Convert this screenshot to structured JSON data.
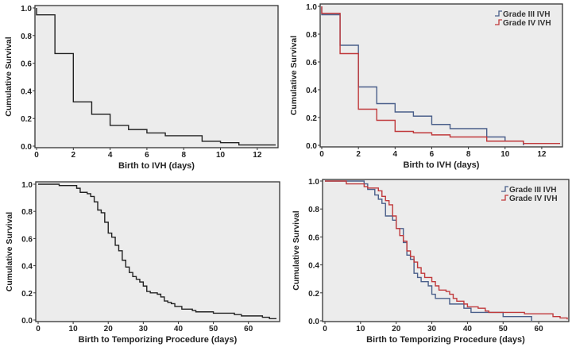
{
  "colors": {
    "background": "#ececec",
    "single": "#222222",
    "grade3": "#4a5f8a",
    "grade4": "#c0393b"
  },
  "chart_data": [
    {
      "type": "line",
      "step": true,
      "xlabel": "Birth to IVH (days)",
      "ylabel": "Cumulative Survival",
      "xlim": [
        0,
        13
      ],
      "ylim": [
        0,
        1
      ],
      "xticks": [
        0,
        2,
        4,
        6,
        8,
        10,
        12
      ],
      "yticks": [
        "0.0",
        "0.2",
        "0.4",
        "0.6",
        "0.8",
        "1.0"
      ],
      "series": [
        {
          "color": "#222222",
          "points": [
            [
              0,
              1
            ],
            [
              0,
              0.95
            ],
            [
              1,
              0.67
            ],
            [
              2,
              0.32
            ],
            [
              3,
              0.23
            ],
            [
              4,
              0.15
            ],
            [
              5,
              0.12
            ],
            [
              6,
              0.095
            ],
            [
              7,
              0.075
            ],
            [
              9,
              0.035
            ],
            [
              10,
              0.025
            ],
            [
              11,
              0.008
            ],
            [
              13,
              0.008
            ]
          ]
        }
      ]
    },
    {
      "type": "line",
      "step": true,
      "xlabel": "Birth to IVH (days)",
      "ylabel": "Cumulative Survival",
      "xlim": [
        0,
        13
      ],
      "ylim": [
        0,
        1
      ],
      "xticks": [
        0,
        2,
        4,
        6,
        8,
        10,
        12
      ],
      "yticks": [
        "0.0",
        "0.2",
        "0.4",
        "0.6",
        "0.8",
        "1.0"
      ],
      "legend": "top-right",
      "series": [
        {
          "name": "Grade III IVH",
          "color": "#4a5f8a",
          "points": [
            [
              0,
              1
            ],
            [
              0,
              0.94
            ],
            [
              1,
              0.72
            ],
            [
              2,
              0.42
            ],
            [
              3,
              0.3
            ],
            [
              4,
              0.24
            ],
            [
              5,
              0.21
            ],
            [
              6,
              0.15
            ],
            [
              7,
              0.12
            ],
            [
              9,
              0.06
            ],
            [
              10,
              0.03
            ],
            [
              11,
              0
            ]
          ]
        },
        {
          "name": "Grade IV IVH",
          "color": "#c0393b",
          "points": [
            [
              0,
              1
            ],
            [
              0,
              0.95
            ],
            [
              1,
              0.66
            ],
            [
              2,
              0.26
            ],
            [
              3,
              0.18
            ],
            [
              4,
              0.1
            ],
            [
              5,
              0.09
            ],
            [
              6,
              0.075
            ],
            [
              7,
              0.06
            ],
            [
              9,
              0.03
            ],
            [
              11,
              0.013
            ],
            [
              13,
              0.013
            ]
          ]
        }
      ]
    },
    {
      "type": "line",
      "step": true,
      "xlabel": "Birth to Temporizing Procedure (days)",
      "ylabel": "Cumulative Survival",
      "xlim": [
        0,
        68
      ],
      "ylim": [
        0,
        1
      ],
      "xticks": [
        0,
        10,
        20,
        30,
        40,
        50,
        60
      ],
      "yticks": [
        "0.0",
        "0.2",
        "0.4",
        "0.6",
        "0.8",
        "1.0"
      ],
      "series": [
        {
          "color": "#222222",
          "points": [
            [
              0,
              1
            ],
            [
              6,
              0.99
            ],
            [
              11,
              0.97
            ],
            [
              12,
              0.94
            ],
            [
              14,
              0.93
            ],
            [
              15,
              0.91
            ],
            [
              16,
              0.87
            ],
            [
              17,
              0.81
            ],
            [
              18,
              0.79
            ],
            [
              19,
              0.72
            ],
            [
              20,
              0.64
            ],
            [
              21,
              0.61
            ],
            [
              22,
              0.55
            ],
            [
              23,
              0.51
            ],
            [
              24,
              0.44
            ],
            [
              25,
              0.39
            ],
            [
              26,
              0.35
            ],
            [
              27,
              0.32
            ],
            [
              28,
              0.3
            ],
            [
              29,
              0.28
            ],
            [
              30,
              0.25
            ],
            [
              31,
              0.21
            ],
            [
              32,
              0.2
            ],
            [
              34,
              0.19
            ],
            [
              35,
              0.17
            ],
            [
              36,
              0.14
            ],
            [
              37,
              0.13
            ],
            [
              38,
              0.12
            ],
            [
              39,
              0.1
            ],
            [
              41,
              0.08
            ],
            [
              44,
              0.07
            ],
            [
              45,
              0.06
            ],
            [
              50,
              0.05
            ],
            [
              56,
              0.04
            ],
            [
              58,
              0.03
            ],
            [
              64,
              0.02
            ],
            [
              66,
              0.01
            ],
            [
              68,
              0.01
            ]
          ]
        }
      ]
    },
    {
      "type": "line",
      "step": true,
      "xlabel": "Birth to Temporizing Procedure (days)",
      "ylabel": "Cumulative Survival",
      "xlim": [
        0,
        68
      ],
      "ylim": [
        0,
        1
      ],
      "xticks": [
        0,
        10,
        20,
        30,
        40,
        50,
        60
      ],
      "yticks": [
        "0.0",
        "0.2",
        "0.4",
        "0.6",
        "0.8",
        "1.0"
      ],
      "legend": "top-right",
      "series": [
        {
          "name": "Grade III IVH",
          "color": "#4a5f8a",
          "points": [
            [
              0,
              1
            ],
            [
              11,
              0.98
            ],
            [
              12,
              0.94
            ],
            [
              14,
              0.9
            ],
            [
              15,
              0.87
            ],
            [
              16,
              0.84
            ],
            [
              17,
              0.75
            ],
            [
              19,
              0.72
            ],
            [
              20,
              0.66
            ],
            [
              22,
              0.56
            ],
            [
              23,
              0.47
            ],
            [
              24,
              0.44
            ],
            [
              25,
              0.34
            ],
            [
              26,
              0.31
            ],
            [
              27,
              0.28
            ],
            [
              29,
              0.25
            ],
            [
              30,
              0.19
            ],
            [
              31,
              0.16
            ],
            [
              35,
              0.12
            ],
            [
              39,
              0.09
            ],
            [
              41,
              0.06
            ],
            [
              50,
              0.03
            ],
            [
              58,
              0
            ]
          ]
        },
        {
          "name": "Grade IV IVH",
          "color": "#c0393b",
          "points": [
            [
              0,
              1
            ],
            [
              6,
              0.98
            ],
            [
              11,
              0.96
            ],
            [
              12,
              0.95
            ],
            [
              15,
              0.93
            ],
            [
              16,
              0.89
            ],
            [
              17,
              0.86
            ],
            [
              18,
              0.83
            ],
            [
              19,
              0.75
            ],
            [
              20,
              0.66
            ],
            [
              21,
              0.61
            ],
            [
              22,
              0.57
            ],
            [
              23,
              0.5
            ],
            [
              24,
              0.46
            ],
            [
              25,
              0.42
            ],
            [
              26,
              0.38
            ],
            [
              27,
              0.34
            ],
            [
              28,
              0.31
            ],
            [
              30,
              0.28
            ],
            [
              31,
              0.25
            ],
            [
              32,
              0.22
            ],
            [
              34,
              0.21
            ],
            [
              35,
              0.19
            ],
            [
              36,
              0.16
            ],
            [
              37,
              0.14
            ],
            [
              39,
              0.12
            ],
            [
              40,
              0.1
            ],
            [
              43,
              0.09
            ],
            [
              45,
              0.07
            ],
            [
              46,
              0.06
            ],
            [
              56,
              0.05
            ],
            [
              64,
              0.03
            ],
            [
              66,
              0.02
            ],
            [
              68,
              0.01
            ]
          ]
        }
      ]
    }
  ]
}
